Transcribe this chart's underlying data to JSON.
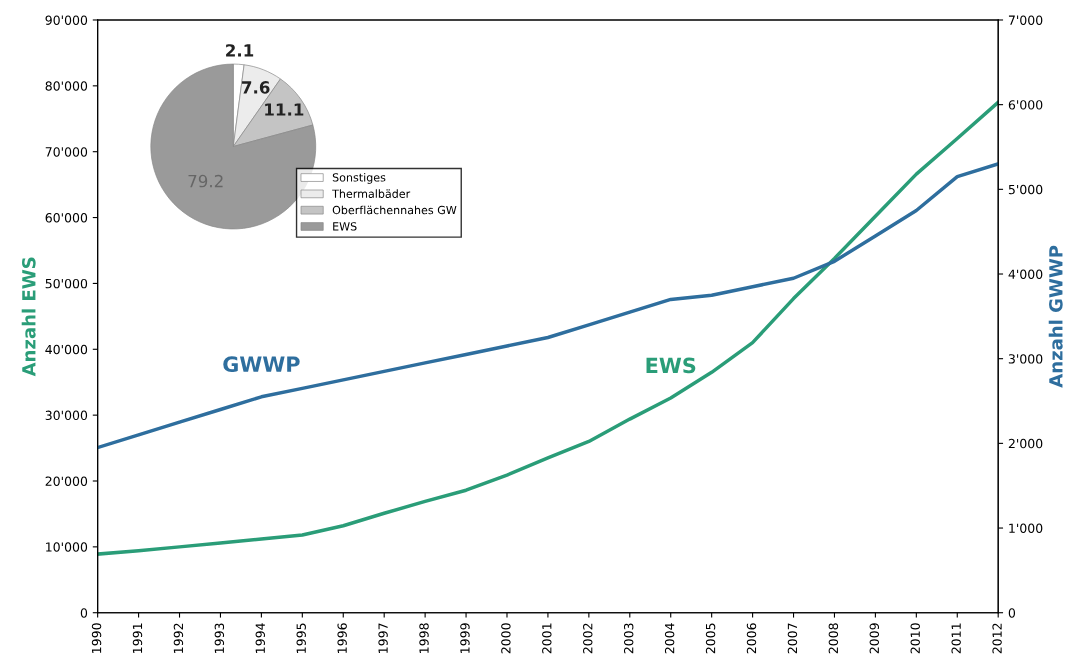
{
  "chart_data": [
    {
      "type": "line",
      "categories": [
        "1990",
        "1991",
        "1992",
        "1993",
        "1994",
        "1995",
        "1996",
        "1997",
        "1998",
        "1999",
        "2000",
        "2001",
        "2002",
        "2003",
        "2004",
        "2005",
        "2006",
        "2007",
        "2008",
        "2009",
        "2010",
        "2011",
        "2012"
      ],
      "ylabel": "Anzahl EWS",
      "y2label": "Anzahl GWWP",
      "ylim": [
        0,
        90000
      ],
      "yticks": [
        {
          "value": 0,
          "label": "0"
        },
        {
          "value": 10000,
          "label": "10'000"
        },
        {
          "value": 20000,
          "label": "20'000"
        },
        {
          "value": 30000,
          "label": "30'000"
        },
        {
          "value": 40000,
          "label": "40'000"
        },
        {
          "value": 50000,
          "label": "50'000"
        },
        {
          "value": 60000,
          "label": "60'000"
        },
        {
          "value": 70000,
          "label": "70'000"
        },
        {
          "value": 80000,
          "label": "80'000"
        },
        {
          "value": 90000,
          "label": "90'000"
        }
      ],
      "y2lim": [
        0,
        7000
      ],
      "y2ticks": [
        {
          "value": 0,
          "label": "0"
        },
        {
          "value": 1000,
          "label": "1'000"
        },
        {
          "value": 2000,
          "label": "2'000"
        },
        {
          "value": 3000,
          "label": "3'000"
        },
        {
          "value": 4000,
          "label": "4'000"
        },
        {
          "value": 5000,
          "label": "5'000"
        },
        {
          "value": 6000,
          "label": "6'000"
        },
        {
          "value": 7000,
          "label": "7'000"
        }
      ],
      "series": [
        {
          "name": "EWS",
          "color": "#2a9d78",
          "values": [
            8900,
            9400,
            10000,
            10600,
            11200,
            11800,
            13200,
            15100,
            16900,
            18600,
            20900,
            23500,
            26000,
            29400,
            32600,
            36500,
            41000,
            47700,
            53800,
            60200,
            66600,
            72000,
            77500
          ]
        },
        {
          "name": "GWWP",
          "color": "#2e6e9e",
          "axis": "y2",
          "values": [
            1950,
            2100,
            2250,
            2400,
            2550,
            2650,
            2750,
            2850,
            2950,
            3050,
            3150,
            3250,
            3400,
            3550,
            3700,
            3750,
            3850,
            3950,
            4150,
            4450,
            4750,
            5150,
            5300
          ]
        }
      ]
    },
    {
      "type": "pie",
      "categories": [
        "Sonstiges",
        "Thermalbäder",
        "Oberflächennahes GW",
        "EWS"
      ],
      "values": [
        2.1,
        7.6,
        11.1,
        79.2
      ],
      "colors": [
        "#ffffff",
        "#ececec",
        "#c4c4c4",
        "#9a9a9a"
      ],
      "data_labels": true,
      "legend": "bottom right"
    }
  ]
}
